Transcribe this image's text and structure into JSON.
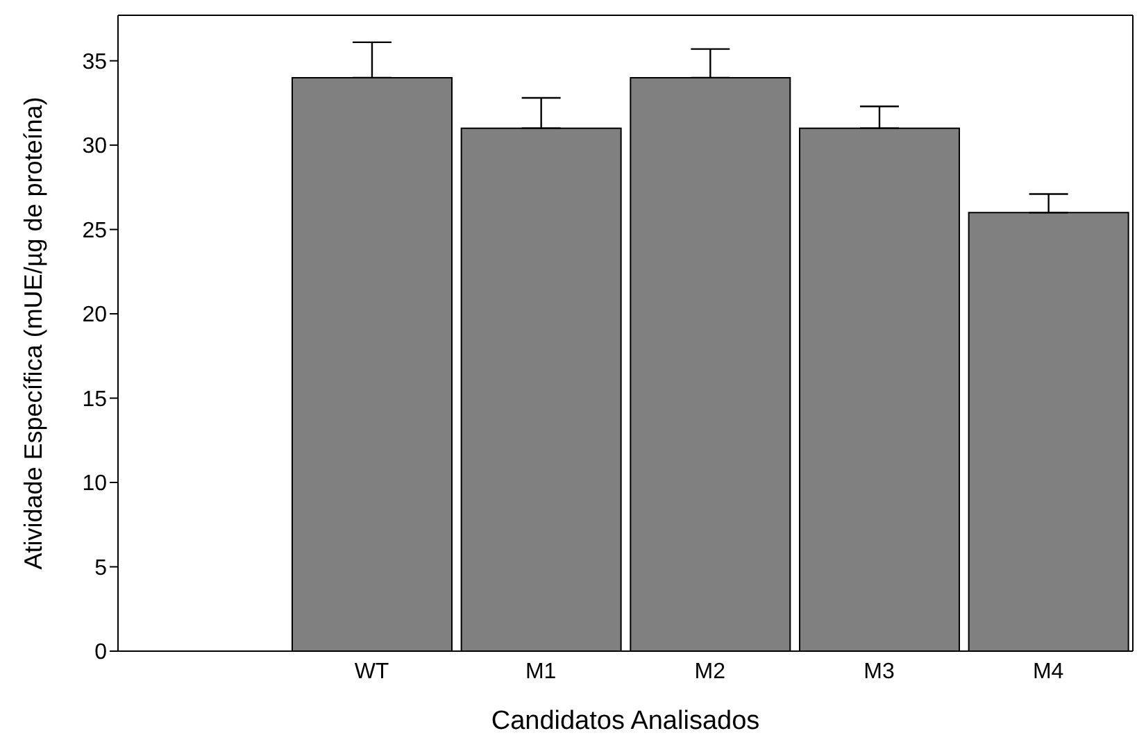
{
  "chart_data": {
    "type": "bar",
    "xlabel": "Candidatos Analisados",
    "ylabel": "Atividade Específica (mUE/µg de proteína)",
    "categories": [
      null,
      "WT",
      "M1",
      "M2",
      "M3",
      "M4"
    ],
    "values": [
      null,
      34,
      31,
      34,
      31,
      26
    ],
    "errors": [
      null,
      [
        34,
        36.1
      ],
      [
        31,
        32.8
      ],
      [
        34,
        35.7
      ],
      [
        31,
        32.3
      ],
      [
        26,
        27.1
      ]
    ],
    "color": "#808080",
    "ylim": [
      0,
      37.7
    ],
    "yticks": [
      0,
      5,
      10,
      15,
      20,
      25,
      30,
      35
    ],
    "grid": false
  }
}
